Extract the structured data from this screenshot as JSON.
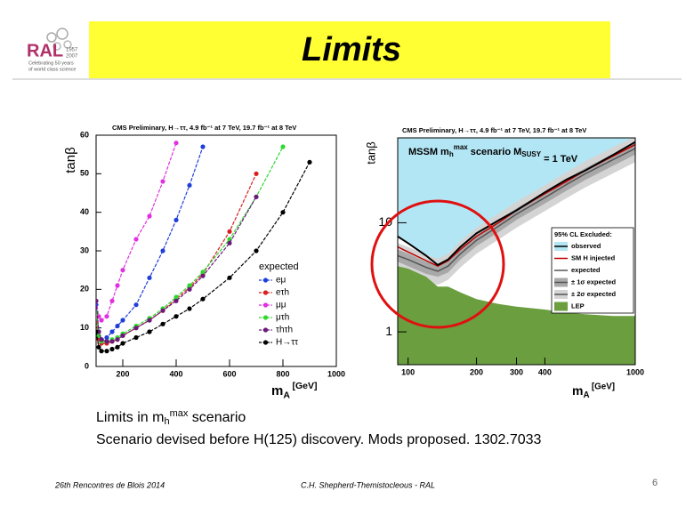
{
  "header": {
    "title": "Limits",
    "logo_text": "RAL",
    "logo_years": [
      "1957",
      "2007"
    ],
    "logo_tagline": [
      "Celebrating 50 years",
      "of world class science"
    ]
  },
  "body": {
    "line1": [
      "Limits in m",
      "h",
      "max",
      " scenario"
    ],
    "line2": "Scenario devised before H(125) discovery. Mods proposed. 1302.7033"
  },
  "footer": {
    "left": "26th Rencontres de Blois 2014",
    "center": "C.H. Shepherd-Themistocleous - RAL",
    "page": "6"
  },
  "chart_data": [
    {
      "type": "line",
      "title": "CMS Preliminary, H→ττ, 4.9 fb⁻¹ at 7 TeV, 19.7 fb⁻¹ at 8 TeV",
      "xlabel": [
        "m",
        "A",
        " [GeV]"
      ],
      "ylabel": "tanβ",
      "legend_title": "expected",
      "x": [
        100,
        110,
        120,
        140,
        160,
        180,
        200,
        250,
        300,
        350,
        400,
        450,
        500,
        600,
        700,
        800,
        900,
        1000
      ],
      "xlim": [
        100,
        1000
      ],
      "xticks": [
        200,
        400,
        600,
        800,
        1000
      ],
      "ylim": [
        0,
        60
      ],
      "yticks": [
        0,
        10,
        20,
        30,
        40,
        50,
        60
      ],
      "series": [
        {
          "name": "eμ",
          "color": "#1f3fd8",
          "values": [
            16,
            9,
            7,
            7.5,
            9,
            10.5,
            12,
            16,
            23,
            30,
            38,
            47,
            57,
            null,
            null,
            null,
            null,
            null
          ]
        },
        {
          "name": "eτh",
          "color": "#d81f1f",
          "values": [
            13,
            7,
            6,
            6,
            6.5,
            7,
            8,
            10,
            12,
            14.5,
            17.5,
            20.5,
            24,
            35,
            50,
            null,
            null,
            null
          ]
        },
        {
          "name": "μμ",
          "color": "#e030e0",
          "values": [
            17,
            13,
            12,
            13,
            17,
            21,
            25,
            33,
            39,
            48,
            58,
            null,
            null,
            null,
            null,
            null,
            null,
            null
          ]
        },
        {
          "name": "μτh",
          "color": "#30d830",
          "values": [
            14,
            8,
            6.5,
            6.5,
            7,
            7.5,
            8.5,
            10.5,
            12.5,
            15,
            18,
            21,
            24.5,
            33,
            44,
            57,
            null,
            null
          ]
        },
        {
          "name": "τhτh",
          "color": "#6a1a7a",
          "values": [
            17,
            9,
            7,
            6.5,
            6.5,
            7,
            8,
            10,
            12,
            14.5,
            17,
            20,
            23.5,
            32,
            44,
            null,
            null,
            null
          ]
        },
        {
          "name": "H→ττ",
          "color": "#000000",
          "values": [
            9,
            5,
            4,
            4,
            4.5,
            5,
            6,
            7.5,
            9,
            11,
            13,
            15,
            17.5,
            23,
            30,
            40,
            53,
            null
          ]
        }
      ]
    },
    {
      "type": "line",
      "title": "CMS Preliminary, H→ττ, 4.9 fb⁻¹ at 7 TeV, 19.7 fb⁻¹ at 8 TeV",
      "inset": [
        "MSSM m",
        "h",
        "max",
        " scenario   M",
        "SUSY",
        " = 1 TeV"
      ],
      "xlabel": [
        "m",
        "A",
        " [GeV]"
      ],
      "ylabel": "tanβ",
      "legend_title": "95% CL Excluded:",
      "xlog": true,
      "ylog": true,
      "excluded_color": "#b3e6f5",
      "x": [
        90,
        100,
        120,
        135,
        150,
        170,
        200,
        250,
        300,
        400,
        500,
        600,
        800,
        1000
      ],
      "xlim": [
        90,
        1000
      ],
      "xticks": [
        100,
        200,
        300,
        400,
        1000
      ],
      "ylim": [
        0.5,
        60
      ],
      "yticks": [
        1,
        10
      ],
      "bands": [
        {
          "name": "± 2σ expected",
          "color": "#d4d4d4",
          "lower": [
            3.75,
            3.45,
            2.9,
            2.7,
            3.0,
            3.9,
            5.2,
            7.0,
            9.0,
            12.8,
            16.9,
            21,
            28.5,
            36
          ],
          "upper": [
            6.5,
            6.0,
            5.1,
            4.7,
            5.2,
            6.8,
            9.0,
            12.1,
            15.6,
            22.1,
            29.3,
            36.4,
            49.4,
            62
          ]
        },
        {
          "name": "± 1σ expected",
          "color": "#a8a8a8",
          "lower": [
            4.4,
            4.0,
            3.4,
            3.2,
            3.5,
            4.6,
            6.1,
            8.2,
            10.6,
            15,
            19.8,
            24.6,
            33.4,
            42.2
          ],
          "upper": [
            5.7,
            5.2,
            4.4,
            4.1,
            4.5,
            5.9,
            7.8,
            10.5,
            13.6,
            19.2,
            25.4,
            31.6,
            42.9,
            54.2
          ]
        }
      ],
      "area": {
        "name": "LEP",
        "color": "#6a9e3f",
        "values": [
          4.0,
          3.8,
          3.2,
          2.6,
          2.6,
          2.3,
          2.0,
          1.8,
          1.7,
          1.6,
          1.5,
          1.45,
          1.4,
          1.4
        ]
      },
      "series": [
        {
          "name": "observed",
          "color": "#000000",
          "values": [
            7.5,
            6.5,
            5.0,
            4.1,
            4.6,
            6,
            8,
            10.5,
            13,
            19,
            25,
            30,
            42,
            55
          ]
        },
        {
          "name": "SM H injected",
          "color": "#c00000",
          "values": [
            6,
            5.4,
            4.5,
            4.0,
            4.5,
            5.7,
            7.5,
            10,
            13,
            18.5,
            24,
            30,
            41,
            52
          ]
        },
        {
          "name": "expected",
          "color": "#555555",
          "values": [
            5,
            4.6,
            3.9,
            3.6,
            4.0,
            5.2,
            6.9,
            9.3,
            12,
            17,
            22.5,
            28,
            38,
            48
          ]
        }
      ]
    }
  ]
}
